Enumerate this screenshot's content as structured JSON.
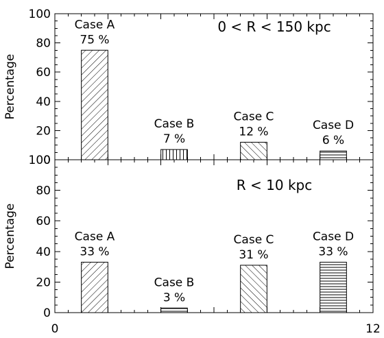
{
  "chart_data": [
    {
      "type": "bar",
      "title": "0 < R < 150 kpc",
      "ylabel": "Percentage",
      "ylim": [
        0,
        100
      ],
      "yticks": [
        0,
        20,
        40,
        60,
        80,
        100
      ],
      "xlim": [
        0,
        12
      ],
      "xticks": [
        "0",
        "12"
      ],
      "show_x_labels": false,
      "categories": [
        "Case A",
        "Case B",
        "Case C",
        "Case D"
      ],
      "bar_centers": [
        1.5,
        4.5,
        7.5,
        10.5
      ],
      "values": [
        75,
        7,
        12,
        6
      ],
      "value_labels": [
        "75 %",
        "7 %",
        "12 %",
        "6 %"
      ],
      "hatches": [
        "diag-up",
        "vertical",
        "diag-down",
        "horizontal"
      ],
      "grid": false
    },
    {
      "type": "bar",
      "title": "R < 10 kpc",
      "ylabel": "Percentage",
      "ylim": [
        0,
        100
      ],
      "yticks": [
        0,
        20,
        40,
        60,
        80,
        100
      ],
      "xlim": [
        0,
        12
      ],
      "xticks": [
        "0",
        "12"
      ],
      "show_x_labels": true,
      "categories": [
        "Case A",
        "Case B",
        "Case C",
        "Case D"
      ],
      "bar_centers": [
        1.5,
        4.5,
        7.5,
        10.5
      ],
      "values": [
        33,
        3,
        31,
        33
      ],
      "value_labels": [
        "33 %",
        "3 %",
        "31 %",
        "33 %"
      ],
      "hatches": [
        "diag-up",
        "horizontal",
        "diag-down",
        "horizontal"
      ],
      "grid": false
    }
  ]
}
